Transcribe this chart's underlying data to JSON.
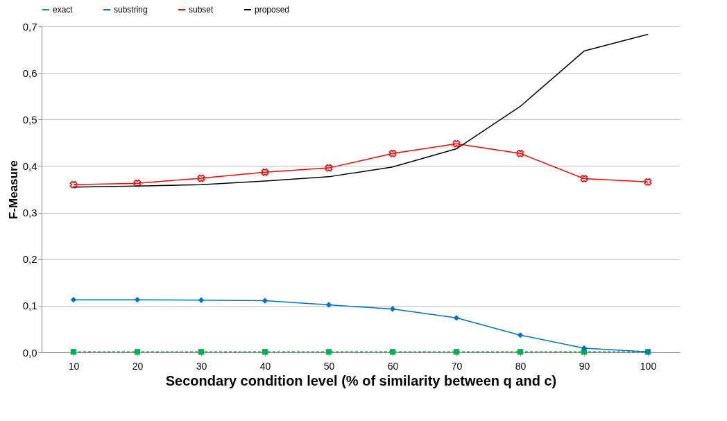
{
  "chart_data": {
    "type": "line",
    "xlabel": "Secondary condition level (% of similarity between q and c)",
    "ylabel": "F-Measure",
    "categories": [
      "10",
      "20",
      "30",
      "40",
      "50",
      "60",
      "70",
      "80",
      "90",
      "100"
    ],
    "series": [
      {
        "name": "exact",
        "color": "#00b050",
        "marker": "square",
        "line_style": "dashed",
        "values": [
          0.001,
          0.001,
          0.001,
          0.001,
          0.001,
          0.001,
          0.001,
          0.001,
          0.001,
          0.001
        ]
      },
      {
        "name": "substring",
        "color": "#0070c0",
        "marker": "diamond",
        "line_style": "solid",
        "values": [
          0.113,
          0.113,
          0.112,
          0.111,
          0.102,
          0.093,
          0.074,
          0.037,
          0.009,
          0.001
        ]
      },
      {
        "name": "subset",
        "color": "#ff0000",
        "marker": "cross",
        "line_style": "solid",
        "values": [
          0.36,
          0.363,
          0.374,
          0.387,
          0.396,
          0.427,
          0.448,
          0.427,
          0.373,
          0.366
        ]
      },
      {
        "name": "proposed",
        "color": "#000000",
        "marker": "none",
        "line_style": "solid",
        "values": [
          0.355,
          0.357,
          0.36,
          0.368,
          0.377,
          0.398,
          0.437,
          0.528,
          0.647,
          0.683
        ]
      }
    ],
    "ylim": [
      0,
      0.7
    ],
    "yticks": [
      {
        "value": 0,
        "label": "0,0"
      },
      {
        "value": 0.1,
        "label": "0,1"
      },
      {
        "value": 0.2,
        "label": "0,2"
      },
      {
        "value": 0.3,
        "label": "0,3"
      },
      {
        "value": 0.4,
        "label": "0,4"
      },
      {
        "value": 0.5,
        "label": "0,5"
      },
      {
        "value": 0.6,
        "label": "0,6"
      },
      {
        "value": 0.7,
        "label": "0,7"
      }
    ],
    "grid": "y",
    "legend": "top"
  }
}
